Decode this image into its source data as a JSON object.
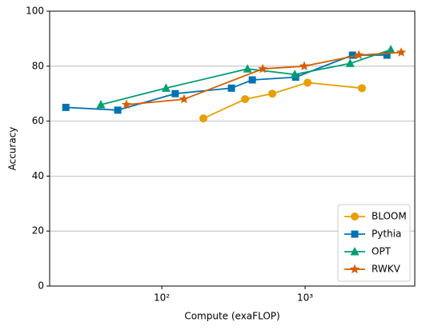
{
  "chart_data": {
    "type": "line",
    "xlabel": "Compute (exaFLOP)",
    "ylabel": "Accuracy",
    "xscale": "log",
    "xlim": [
      16.5,
      5820
    ],
    "ylim": [
      0,
      100
    ],
    "xticks": [
      {
        "value": 100,
        "label": "10²"
      },
      {
        "value": 1000,
        "label": "10³"
      }
    ],
    "yticks": [
      0,
      20,
      40,
      60,
      80,
      100
    ],
    "grid": true,
    "legend": "lower right",
    "series": [
      {
        "name": "BLOOM",
        "color": "#e69f00",
        "marker": "circle",
        "x": [
          195,
          381,
          590,
          1040,
          2490
        ],
        "values": [
          61,
          68,
          70,
          74,
          72
        ]
      },
      {
        "name": "Pythia",
        "color": "#0072b2",
        "marker": "square",
        "x": [
          21.4,
          49.3,
          124,
          306,
          428,
          858,
          2140,
          3720
        ],
        "values": [
          65,
          64,
          70,
          72,
          75,
          76,
          84,
          84
        ]
      },
      {
        "name": "OPT",
        "color": "#009e73",
        "marker": "triangle",
        "x": [
          37.6,
          107,
          396,
          846,
          2060,
          3960
        ],
        "values": [
          66,
          72,
          79,
          77,
          81,
          86
        ]
      },
      {
        "name": "RWKV",
        "color": "#d55e00",
        "marker": "star",
        "x": [
          56.7,
          143,
          506,
          986,
          2370,
          4680
        ],
        "values": [
          66,
          68,
          79,
          80,
          84,
          85
        ]
      }
    ]
  }
}
